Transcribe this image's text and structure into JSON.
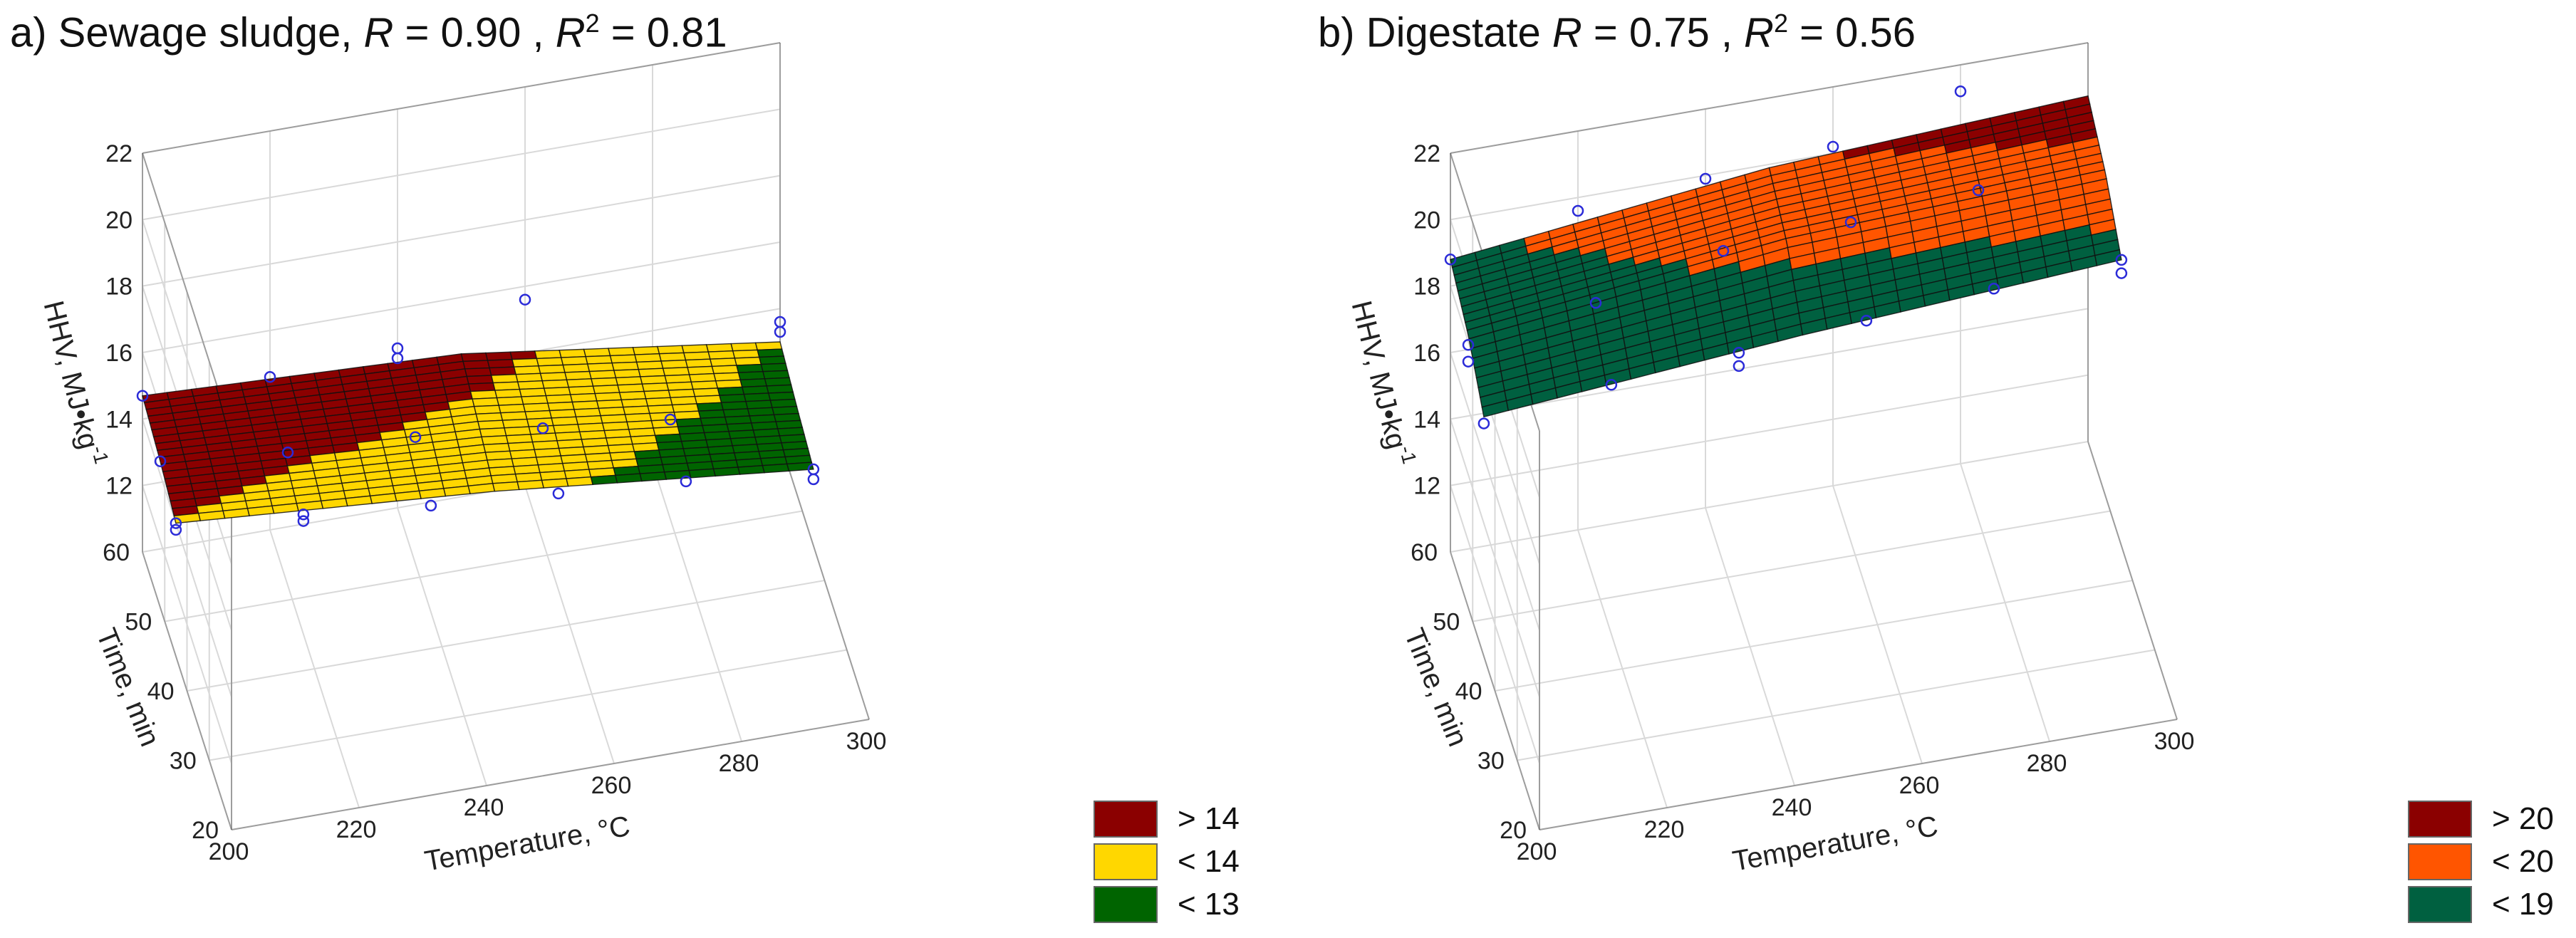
{
  "panels": [
    {
      "id": "a",
      "title_prefix": "a) Sewage sludge, ",
      "r_symbol": "R",
      "r_text": " = 0.90 , ",
      "r2_symbol": "R",
      "r2_sup": "2",
      "r2_text": " = 0.81",
      "legend": [
        {
          "label": "> 14",
          "color": "#8B0000"
        },
        {
          "label": "< 14",
          "color": "#FFD700"
        },
        {
          "label": "< 13",
          "color": "#006400"
        }
      ]
    },
    {
      "id": "b",
      "title_prefix": "b) Digestate ",
      "r_symbol": "R",
      "r_text": " = 0.75 , ",
      "r2_symbol": "R",
      "r2_sup": "2",
      "r2_text": " = 0.56",
      "legend": [
        {
          "label": "> 20",
          "color": "#8B0000"
        },
        {
          "label": "< 20",
          "color": "#FF5500"
        },
        {
          "label": "< 19",
          "color": "#006040"
        }
      ]
    }
  ],
  "chart_data": [
    {
      "type": "surface3d",
      "title": "a) Sewage sludge, R = 0.90 , R2 = 0.81",
      "xlabel": "Temperature, °C",
      "ylabel": "Time, min",
      "zlabel": "HHV, MJ•kg-1",
      "x_ticks": [
        200,
        220,
        240,
        260,
        280,
        300
      ],
      "y_ticks": [
        20,
        30,
        40,
        50,
        60
      ],
      "z_ticks": [
        12,
        14,
        16,
        18,
        20,
        22
      ],
      "xlim": [
        200,
        300
      ],
      "ylim": [
        20,
        60
      ],
      "zlim": [
        10,
        22
      ],
      "surface_x": [
        200,
        250,
        300
      ],
      "surface_y": [
        45,
        52,
        60
      ],
      "surface_z": [
        [
          14.0,
          13.3,
          12.3
        ],
        [
          14.4,
          13.8,
          12.6
        ],
        [
          14.7,
          14.3,
          13.0
        ]
      ],
      "thresholds": [
        13,
        14
      ],
      "legend": [
        "> 14",
        "< 14",
        "< 13"
      ],
      "points": [
        {
          "x": 200,
          "y": 45,
          "z": 14.0
        },
        {
          "x": 200,
          "y": 45,
          "z": 13.8
        },
        {
          "x": 220,
          "y": 45,
          "z": 13.6
        },
        {
          "x": 220,
          "y": 45,
          "z": 13.4
        },
        {
          "x": 240,
          "y": 45,
          "z": 13.2
        },
        {
          "x": 260,
          "y": 45,
          "z": 12.9
        },
        {
          "x": 280,
          "y": 45,
          "z": 12.6
        },
        {
          "x": 300,
          "y": 45,
          "z": 12.3
        },
        {
          "x": 300,
          "y": 45,
          "z": 12.0
        },
        {
          "x": 200,
          "y": 52,
          "z": 14.4
        },
        {
          "x": 220,
          "y": 52,
          "z": 14.0
        },
        {
          "x": 240,
          "y": 52,
          "z": 13.8
        },
        {
          "x": 260,
          "y": 52,
          "z": 13.4
        },
        {
          "x": 280,
          "y": 52,
          "z": 13.0
        },
        {
          "x": 200,
          "y": 60,
          "z": 14.7
        },
        {
          "x": 220,
          "y": 60,
          "z": 14.6
        },
        {
          "x": 240,
          "y": 60,
          "z": 14.8
        },
        {
          "x": 240,
          "y": 60,
          "z": 14.5
        },
        {
          "x": 260,
          "y": 60,
          "z": 15.6
        },
        {
          "x": 300,
          "y": 60,
          "z": 13.6
        },
        {
          "x": 300,
          "y": 60,
          "z": 13.3
        }
      ]
    },
    {
      "type": "surface3d",
      "title": "b) Digestate R = 0.75 , R2 = 0.56",
      "xlabel": "Temperature, °C",
      "ylabel": "Time, min",
      "zlabel": "HHV, MJ•kg-1",
      "x_ticks": [
        200,
        220,
        240,
        260,
        280,
        300
      ],
      "y_ticks": [
        20,
        30,
        40,
        50,
        60
      ],
      "z_ticks": [
        12,
        14,
        16,
        18,
        20,
        22
      ],
      "xlim": [
        200,
        300
      ],
      "ylim": [
        20,
        60
      ],
      "zlim": [
        10,
        22
      ],
      "surface_x": [
        200,
        250,
        300
      ],
      "surface_y": [
        45,
        52,
        60
      ],
      "surface_z": [
        [
          17.2,
          18.0,
          18.6
        ],
        [
          18.2,
          19.3,
          19.7
        ],
        [
          18.8,
          19.9,
          20.4
        ]
      ],
      "thresholds": [
        19,
        20
      ],
      "legend": [
        "> 20",
        "< 20",
        "< 19"
      ],
      "points": [
        {
          "x": 200,
          "y": 45,
          "z": 17.0
        },
        {
          "x": 220,
          "y": 45,
          "z": 17.5
        },
        {
          "x": 240,
          "y": 45,
          "z": 17.8
        },
        {
          "x": 240,
          "y": 45,
          "z": 17.4
        },
        {
          "x": 260,
          "y": 45,
          "z": 18.1
        },
        {
          "x": 280,
          "y": 45,
          "z": 18.4
        },
        {
          "x": 300,
          "y": 45,
          "z": 18.6
        },
        {
          "x": 300,
          "y": 45,
          "z": 18.2
        },
        {
          "x": 200,
          "y": 52,
          "z": 17.9
        },
        {
          "x": 200,
          "y": 52,
          "z": 17.4
        },
        {
          "x": 220,
          "y": 52,
          "z": 18.5
        },
        {
          "x": 240,
          "y": 52,
          "z": 19.4
        },
        {
          "x": 260,
          "y": 52,
          "z": 19.6
        },
        {
          "x": 280,
          "y": 52,
          "z": 19.9
        },
        {
          "x": 200,
          "y": 60,
          "z": 18.8
        },
        {
          "x": 220,
          "y": 60,
          "z": 19.6
        },
        {
          "x": 240,
          "y": 60,
          "z": 19.9
        },
        {
          "x": 260,
          "y": 60,
          "z": 20.2
        },
        {
          "x": 280,
          "y": 60,
          "z": 21.2
        }
      ]
    }
  ]
}
